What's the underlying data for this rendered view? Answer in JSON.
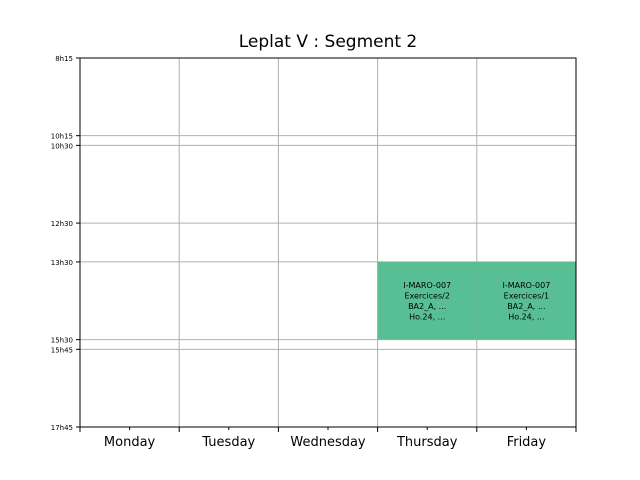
{
  "chart_data": {
    "type": "timetable",
    "title": "Leplat V : Segment 2",
    "days": [
      "Monday",
      "Tuesday",
      "Wednesday",
      "Thursday",
      "Friday"
    ],
    "time_ticks": [
      {
        "label": "8h15",
        "hours": 8.25
      },
      {
        "label": "10h15",
        "hours": 10.25
      },
      {
        "label": "10h30",
        "hours": 10.5
      },
      {
        "label": "12h30",
        "hours": 12.5
      },
      {
        "label": "13h30",
        "hours": 13.5
      },
      {
        "label": "15h30",
        "hours": 15.5
      },
      {
        "label": "15h45",
        "hours": 15.75
      },
      {
        "label": "17h45",
        "hours": 17.75
      }
    ],
    "y_range_hours": [
      8.25,
      17.75
    ],
    "grid": true,
    "events": [
      {
        "day": "Thursday",
        "start_hours": 13.5,
        "end_hours": 15.5,
        "color": "#57bf93",
        "lines": [
          "I-MARO-007",
          "Exercices/2",
          "BA2_A, ...",
          "Ho.24, ..."
        ]
      },
      {
        "day": "Friday",
        "start_hours": 13.5,
        "end_hours": 15.5,
        "color": "#57bf93",
        "lines": [
          "I-MARO-007",
          "Exercices/1",
          "BA2_A, ...",
          "Ho.24, ..."
        ]
      }
    ]
  },
  "colors": {
    "grid": "#b0b0b0",
    "axis": "#000000",
    "event": "#57bf93"
  }
}
